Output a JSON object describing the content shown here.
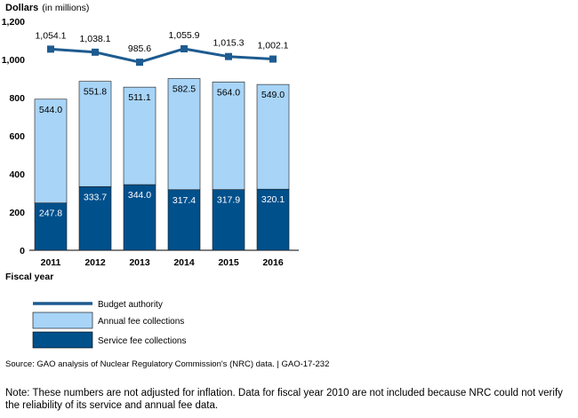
{
  "chart_data": {
    "type": "bar",
    "ylabel": "Dollars",
    "ylabel_unit": "(in millions)",
    "xlabel": "Fiscal year",
    "ylim": [
      0,
      1200
    ],
    "yticks": [
      "0",
      "200",
      "400",
      "600",
      "800",
      "1,000",
      "1,200"
    ],
    "categories": [
      "2011",
      "2012",
      "2013",
      "2014",
      "2015",
      "2016"
    ],
    "stacked": true,
    "grid": false,
    "legend_position": "bottom-left",
    "series": [
      {
        "name": "Service fee collections",
        "kind": "bar",
        "color": "#00508c",
        "values": [
          247.8,
          333.7,
          344.0,
          317.4,
          317.9,
          320.1
        ],
        "labels": [
          "247.8",
          "333.7",
          "344.0",
          "317.4",
          "317.9",
          "320.1"
        ]
      },
      {
        "name": "Annual fee collections",
        "kind": "bar",
        "color": "#a7d4f7",
        "values": [
          544.0,
          551.8,
          511.1,
          582.5,
          564.0,
          549.0
        ],
        "labels": [
          "544.0",
          "551.8",
          "511.1",
          "582.5",
          "564.0",
          "549.0"
        ]
      },
      {
        "name": "Budget authority",
        "kind": "line",
        "color": "#1d5b90",
        "values": [
          1054.1,
          1038.1,
          985.6,
          1055.9,
          1015.3,
          1002.1
        ],
        "labels": [
          "1,054.1",
          "1,038.1",
          "985.6",
          "1,055.9",
          "1,015.3",
          "1,002.1"
        ]
      }
    ]
  },
  "source": "Source: GAO analysis of Nuclear Regulatory Commission's (NRC) data.  |  GAO-17-232",
  "note": "Note: These numbers are not adjusted for inflation. Data for fiscal year 2010 are not included because NRC could not verify the reliability of its service and annual fee data."
}
